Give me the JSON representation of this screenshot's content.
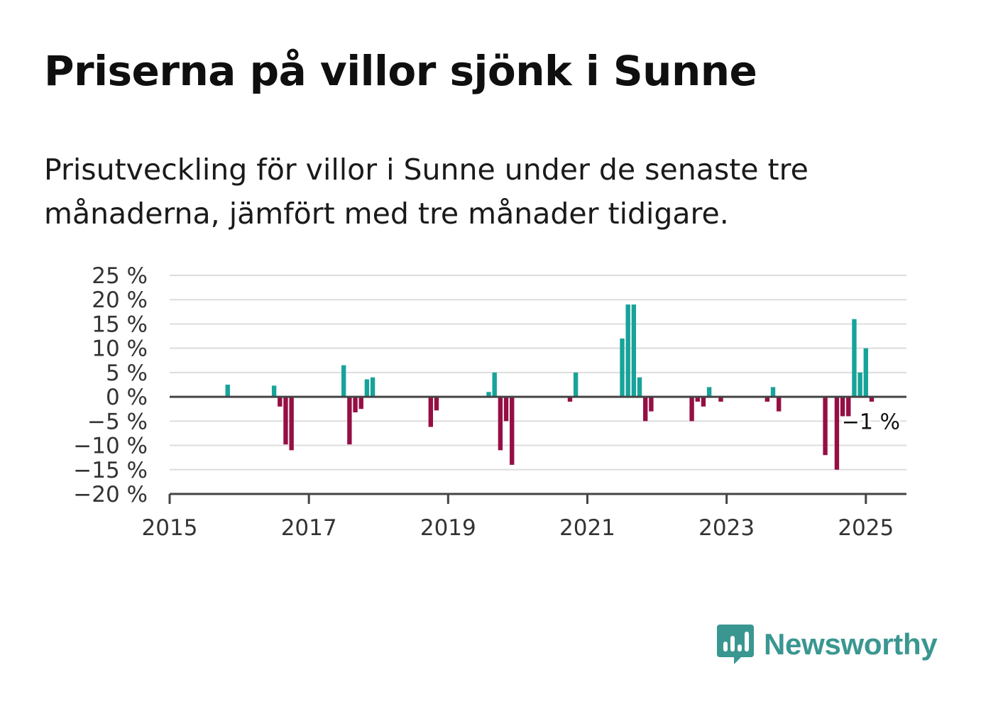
{
  "title": "Priserna på villor sjönk i Sunne",
  "subtitle": "Prisutveckling för villor i Sunne under de senaste tre månaderna, jämfört med tre månader tidigare.",
  "brand": {
    "name": "Newsworthy",
    "icon": "newsworthy-logo-icon"
  },
  "colors": {
    "positive": "#17a39a",
    "negative": "#950f44",
    "grid": "#dddddd",
    "axis": "#444444",
    "brand": "#3a9691"
  },
  "chart_data": {
    "type": "bar",
    "title": "Priserna på villor sjönk i Sunne",
    "xlabel": "",
    "ylabel": "",
    "ylim": [
      -20,
      25
    ],
    "yticks": [
      "25 %",
      "20 %",
      "15 %",
      "10 %",
      "5 %",
      "0 %",
      "−5 %",
      "−10 %",
      "−15 %",
      "−20 %"
    ],
    "ytick_values": [
      25,
      20,
      15,
      10,
      5,
      0,
      -5,
      -10,
      -15,
      -20
    ],
    "xticks": [
      "2015",
      "2017",
      "2019",
      "2021",
      "2023",
      "2025"
    ],
    "xtick_values": [
      "2015-01",
      "2017-01",
      "2019-01",
      "2021-01",
      "2023-01",
      "2025-01"
    ],
    "xlim": [
      "2015-01",
      "2025-08"
    ],
    "grid": true,
    "annotation": {
      "text": "−1 %",
      "x": "2025-01",
      "y": -1
    },
    "series": [
      {
        "x": [
          "2015-11",
          "2016-07",
          "2016-08",
          "2016-09",
          "2016-10",
          "2017-07",
          "2017-08",
          "2017-09",
          "2017-10",
          "2017-11",
          "2017-12",
          "2018-10",
          "2018-11",
          "2019-08",
          "2019-09",
          "2019-10",
          "2019-11",
          "2019-12",
          "2020-10",
          "2020-11",
          "2021-07",
          "2021-08",
          "2021-09",
          "2021-10",
          "2021-11",
          "2021-12",
          "2022-07",
          "2022-08",
          "2022-09",
          "2022-10",
          "2022-12",
          "2023-08",
          "2023-09",
          "2023-10",
          "2024-06",
          "2024-08",
          "2024-09",
          "2024-10",
          "2024-11",
          "2024-12",
          "2025-01",
          "2025-02"
        ],
        "values": [
          2.5,
          2.3,
          -2,
          -9.8,
          -11,
          6.5,
          -9.8,
          -3.2,
          -2.5,
          3.6,
          4,
          -6.2,
          -2.8,
          1,
          5,
          -11,
          -5,
          -14,
          -1,
          5,
          12,
          19,
          19,
          4,
          -5,
          -3,
          -5,
          -1,
          -2,
          2,
          -1,
          -1,
          2,
          -3,
          -12,
          -15,
          -4,
          -4,
          16,
          5,
          10,
          -1
        ]
      }
    ]
  }
}
